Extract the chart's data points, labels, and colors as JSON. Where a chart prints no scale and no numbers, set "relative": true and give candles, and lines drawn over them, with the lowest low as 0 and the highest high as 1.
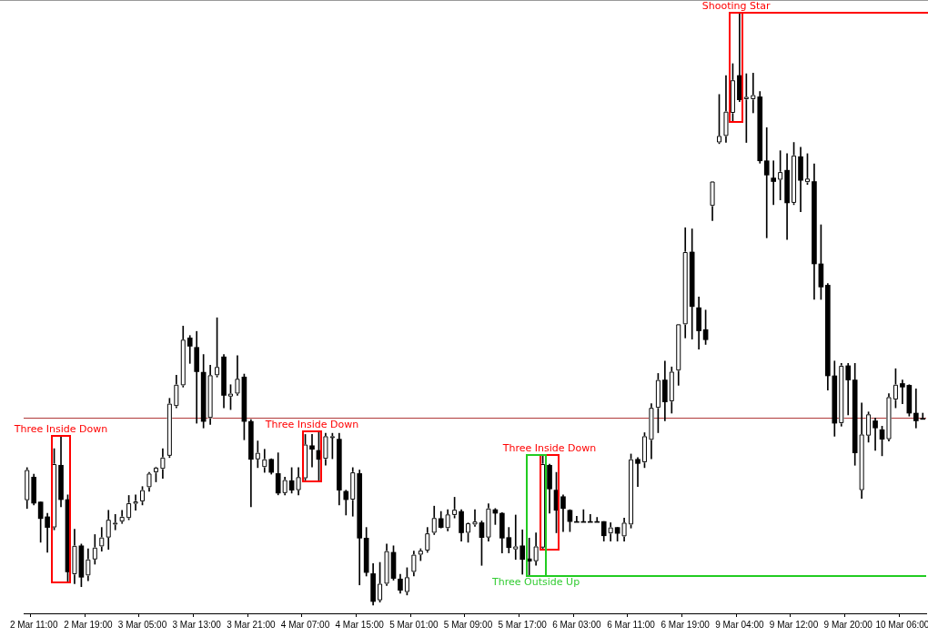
{
  "chart_data": {
    "type": "candlestick",
    "relative": true,
    "color": "#000000",
    "categories": [
      null,
      "2 Mar 11:00",
      null,
      null,
      null,
      null,
      null,
      null,
      null,
      "2 Mar 19:00",
      null,
      null,
      null,
      null,
      null,
      null,
      null,
      "3 Mar 05:00",
      null,
      null,
      null,
      null,
      null,
      null,
      null,
      "3 Mar 13:00",
      null,
      null,
      null,
      null,
      null,
      null,
      null,
      "3 Mar 21:00",
      null,
      null,
      null,
      null,
      null,
      null,
      null,
      "4 Mar 07:00",
      null,
      null,
      null,
      null,
      null,
      null,
      null,
      "4 Mar 15:00",
      null,
      null,
      null,
      null,
      null,
      null,
      null,
      "5 Mar 01:00",
      null,
      null,
      null,
      null,
      null,
      null,
      null,
      "5 Mar 09:00",
      null,
      null,
      null,
      null,
      null,
      null,
      null,
      "5 Mar 17:00",
      null,
      null,
      null,
      null,
      null,
      null,
      null,
      "6 Mar 03:00",
      null,
      null,
      null,
      null,
      null,
      null,
      null,
      "6 Mar 11:00",
      null,
      null,
      null,
      null,
      null,
      null,
      null,
      "6 Mar 19:00",
      null,
      null,
      null,
      null,
      null,
      null,
      null,
      "9 Mar 04:00",
      null,
      null,
      null,
      null,
      null,
      null,
      null,
      "9 Mar 12:00",
      null,
      null,
      null,
      null,
      null,
      null,
      null,
      "9 Mar 20:00",
      null,
      null,
      null,
      null,
      null,
      null,
      null,
      "10 Mar 06:00",
      null,
      null,
      null
    ],
    "ohlc": [
      [
        0.177,
        0.232,
        0.163,
        0.228
      ],
      [
        0.216,
        0.221,
        0.169,
        0.172
      ],
      [
        0.174,
        0.174,
        0.106,
        0.146
      ],
      [
        0.149,
        0.155,
        0.089,
        0.131
      ],
      [
        0.131,
        0.264,
        0.127,
        0.238
      ],
      [
        0.236,
        0.286,
        0.166,
        0.178
      ],
      [
        0.178,
        0.186,
        0.038,
        0.056
      ],
      [
        0.052,
        0.128,
        0.036,
        0.1
      ],
      [
        0.1,
        0.103,
        0.031,
        0.047
      ],
      [
        0.05,
        0.095,
        0.041,
        0.077
      ],
      [
        0.077,
        0.119,
        0.069,
        0.097
      ],
      [
        0.099,
        0.131,
        0.091,
        0.114
      ],
      [
        0.114,
        0.16,
        0.094,
        0.144
      ],
      [
        0.136,
        0.153,
        0.127,
        0.139
      ],
      [
        0.141,
        0.16,
        0.138,
        0.149
      ],
      [
        0.147,
        0.185,
        0.144,
        0.172
      ],
      [
        0.171,
        0.186,
        0.16,
        0.175
      ],
      [
        0.175,
        0.2,
        0.169,
        0.194
      ],
      [
        0.199,
        0.224,
        0.192,
        0.222
      ],
      [
        0.224,
        0.233,
        0.208,
        0.232
      ],
      [
        0.23,
        0.264,
        0.214,
        0.249
      ],
      [
        0.252,
        0.349,
        0.249,
        0.34
      ],
      [
        0.336,
        0.388,
        0.333,
        0.372
      ],
      [
        0.371,
        0.471,
        0.368,
        0.448
      ],
      [
        0.451,
        0.455,
        0.408,
        0.437
      ],
      [
        0.435,
        0.462,
        0.307,
        0.394
      ],
      [
        0.393,
        0.423,
        0.299,
        0.31
      ],
      [
        0.316,
        0.405,
        0.305,
        0.388
      ],
      [
        0.388,
        0.485,
        0.385,
        0.402
      ],
      [
        0.419,
        0.423,
        0.333,
        0.354
      ],
      [
        0.352,
        0.372,
        0.33,
        0.357
      ],
      [
        0.357,
        0.421,
        0.354,
        0.382
      ],
      [
        0.385,
        0.39,
        0.279,
        0.31
      ],
      [
        0.31,
        0.313,
        0.166,
        0.246
      ],
      [
        0.246,
        0.277,
        0.232,
        0.257
      ],
      [
        0.233,
        0.263,
        0.224,
        0.246
      ],
      [
        0.246,
        0.247,
        0.221,
        0.224
      ],
      [
        0.222,
        0.257,
        0.186,
        0.189
      ],
      [
        0.189,
        0.216,
        0.186,
        0.211
      ],
      [
        0.21,
        0.232,
        0.189,
        0.194
      ],
      [
        0.194,
        0.232,
        0.186,
        0.216
      ],
      [
        0.214,
        0.288,
        0.211,
        0.271
      ],
      [
        0.269,
        0.288,
        0.233,
        0.263
      ],
      [
        0.261,
        0.294,
        0.208,
        0.246
      ],
      [
        0.247,
        0.29,
        0.236,
        0.285
      ],
      [
        0.283,
        0.29,
        0.247,
        0.285
      ],
      [
        0.28,
        0.29,
        0.169,
        0.194
      ],
      [
        0.192,
        0.194,
        0.152,
        0.178
      ],
      [
        0.178,
        0.232,
        0.15,
        0.224
      ],
      [
        0.222,
        0.228,
        0.034,
        0.113
      ],
      [
        0.113,
        0.131,
        0.049,
        0.055
      ],
      [
        0.053,
        0.07,
        0,
        0.006
      ],
      [
        0.008,
        0.072,
        0.005,
        0.036
      ],
      [
        0.036,
        0.103,
        0.033,
        0.091
      ],
      [
        0.089,
        0.1,
        0.042,
        0.045
      ],
      [
        0.044,
        0.052,
        0.02,
        0.025
      ],
      [
        0.022,
        0.063,
        0.017,
        0.047
      ],
      [
        0.056,
        0.091,
        0.049,
        0.085
      ],
      [
        0.085,
        0.095,
        0.075,
        0.092
      ],
      [
        0.092,
        0.131,
        0.089,
        0.121
      ],
      [
        0.122,
        0.167,
        0.119,
        0.147
      ],
      [
        0.146,
        0.158,
        0.13,
        0.131
      ],
      [
        0.13,
        0.161,
        0.125,
        0.153
      ],
      [
        0.152,
        0.182,
        0.147,
        0.161
      ],
      [
        0.158,
        0.161,
        0.108,
        0.122
      ],
      [
        0.122,
        0.139,
        0.106,
        0.138
      ],
      [
        0.136,
        0.161,
        0.133,
        0.141
      ],
      [
        0.139,
        0.142,
        0.067,
        0.114
      ],
      [
        0.114,
        0.171,
        0.108,
        0.163
      ],
      [
        0.161,
        0.163,
        0.136,
        0.155
      ],
      [
        0.155,
        0.156,
        0.088,
        0.113
      ],
      [
        0.114,
        0.131,
        0.088,
        0.097
      ],
      [
        0.094,
        0.152,
        0.077,
        0.099
      ],
      [
        0.1,
        0.127,
        0.052,
        0.077
      ],
      [
        0.078,
        0.113,
        0.049,
        0.074
      ],
      [
        0.074,
        0.122,
        0.067,
        0.099
      ],
      [
        0.097,
        0.254,
        0.094,
        0.238
      ],
      [
        0.236,
        0.238,
        0.155,
        0.196
      ],
      [
        0.194,
        0.224,
        0.122,
        0.16
      ],
      [
        0.183,
        0.186,
        0.124,
        0.163
      ],
      [
        0.16,
        0.161,
        0.124,
        0.141
      ],
      [
        0.141,
        0.15,
        0.141,
        0.141
      ],
      [
        0.141,
        0.161,
        0.141,
        0.141
      ],
      [
        0.141,
        0.153,
        0.141,
        0.141
      ],
      [
        0.141,
        0.148,
        0.141,
        0.141
      ],
      [
        0.141,
        0.141,
        0.108,
        0.117
      ],
      [
        0.121,
        0.139,
        0.108,
        0.131
      ],
      [
        0.131,
        0.131,
        0.108,
        0.121
      ],
      [
        0.116,
        0.147,
        0.108,
        0.139
      ],
      [
        0.136,
        0.255,
        0.13,
        0.246
      ],
      [
        0.246,
        0.249,
        0.2,
        0.239
      ],
      [
        0.241,
        0.291,
        0.232,
        0.285
      ],
      [
        0.279,
        0.34,
        0.247,
        0.333
      ],
      [
        0.333,
        0.391,
        0.291,
        0.38
      ],
      [
        0.38,
        0.412,
        0.311,
        0.343
      ],
      [
        0.344,
        0.402,
        0.324,
        0.394
      ],
      [
        0.396,
        0.474,
        0.371,
        0.474
      ],
      [
        0.474,
        0.637,
        0.451,
        0.596
      ],
      [
        0.596,
        0.635,
        0.449,
        0.504
      ],
      [
        0.502,
        0.52,
        0.432,
        0.463
      ],
      [
        0.465,
        0.498,
        0.44,
        0.448
      ],
      [
        0.674,
        0.715,
        0.649,
        0.715
      ],
      [
        0.781,
        0.862,
        0.779,
        0.792
      ],
      [
        0.792,
        0.894,
        0.781,
        0.833
      ],
      [
        0.831,
        0.914,
        0.815,
        0.886
      ],
      [
        0.894,
        1,
        0.85,
        0.853
      ],
      [
        0.854,
        0.897,
        0.781,
        0.858
      ],
      [
        0.854,
        0.898,
        0.831,
        0.861
      ],
      [
        0.858,
        0.867,
        0.746,
        0.75
      ],
      [
        0.75,
        0.806,
        0.62,
        0.726
      ],
      [
        0.721,
        0.75,
        0.676,
        0.715
      ],
      [
        0.718,
        0.767,
        0.684,
        0.731
      ],
      [
        0.734,
        0.762,
        0.617,
        0.679
      ],
      [
        0.679,
        0.781,
        0.676,
        0.759
      ],
      [
        0.757,
        0.773,
        0.664,
        0.717
      ],
      [
        0.714,
        0.762,
        0.71,
        0.72
      ],
      [
        0.715,
        0.745,
        0.516,
        0.576
      ],
      [
        0.576,
        0.642,
        0.516,
        0.537
      ],
      [
        0.54,
        0.543,
        0.363,
        0.387
      ],
      [
        0.387,
        0.412,
        0.285,
        0.307
      ],
      [
        0.307,
        0.408,
        0.302,
        0.404
      ],
      [
        0.404,
        0.408,
        0.321,
        0.38
      ],
      [
        0.38,
        0.408,
        0.236,
        0.257
      ],
      [
        0.194,
        0.341,
        0.18,
        0.288
      ],
      [
        0.286,
        0.326,
        0.275,
        0.322
      ],
      [
        0.311,
        0.316,
        0.261,
        0.299
      ],
      [
        0.296,
        0.302,
        0.252,
        0.28
      ],
      [
        0.28,
        0.357,
        0.277,
        0.351
      ],
      [
        0.347,
        0.399,
        0.333,
        0.372
      ],
      [
        0.374,
        0.38,
        0.34,
        0.368
      ],
      [
        0.371,
        0.372,
        0.319,
        0.324
      ],
      [
        0.324,
        0.365,
        0.299,
        0.311
      ],
      [
        0.315,
        0.324,
        0.315,
        0.315
      ]
    ],
    "colors": [
      "#ffffff",
      "#000000",
      "#000000",
      "#000000",
      "#ffffff",
      "#000000",
      "#000000",
      "#ffffff",
      "#000000",
      "#ffffff",
      "#ffffff",
      "#ffffff",
      "#ffffff",
      "#ffffff",
      "#ffffff",
      "#ffffff",
      "#ffffff",
      "#ffffff",
      "#ffffff",
      "#ffffff",
      "#ffffff",
      "#ffffff",
      "#ffffff",
      "#ffffff",
      "#000000",
      "#000000",
      "#000000",
      "#ffffff",
      "#ffffff",
      "#000000",
      "#ffffff",
      "#ffffff",
      "#000000",
      "#000000",
      "#ffffff",
      "#ffffff",
      "#000000",
      "#000000",
      "#ffffff",
      "#000000",
      "#ffffff",
      "#ffffff",
      "#000000",
      "#000000",
      "#ffffff",
      "#ffffff",
      "#000000",
      "#000000",
      "#ffffff",
      "#000000",
      "#000000",
      "#000000",
      "#ffffff",
      "#ffffff",
      "#000000",
      "#000000",
      "#ffffff",
      "#ffffff",
      "#ffffff",
      "#ffffff",
      "#ffffff",
      "#000000",
      "#ffffff",
      "#ffffff",
      "#000000",
      "#ffffff",
      "#ffffff",
      "#000000",
      "#ffffff",
      "#000000",
      "#000000",
      "#000000",
      "#ffffff",
      "#000000",
      "#000000",
      "#ffffff",
      "#ffffff",
      "#000000",
      "#000000",
      "#000000",
      "#000000",
      "#000000",
      "#000000",
      "#000000",
      "#000000",
      "#000000",
      "#ffffff",
      "#000000",
      "#ffffff",
      "#ffffff",
      "#000000",
      "#ffffff",
      "#ffffff",
      "#ffffff",
      "#000000",
      "#ffffff",
      "#ffffff",
      "#ffffff",
      "#000000",
      "#000000",
      "#000000",
      "#ffffff",
      "#ffffff",
      "#ffffff",
      "#ffffff",
      "#000000",
      "#ffffff",
      "#ffffff",
      "#000000",
      "#000000",
      "#000000",
      "#ffffff",
      "#000000",
      "#ffffff",
      "#000000",
      "#ffffff",
      "#000000",
      "#000000",
      "#000000",
      "#000000",
      "#ffffff",
      "#000000",
      "#000000",
      "#ffffff",
      "#ffffff",
      "#000000",
      "#000000",
      "#ffffff",
      "#ffffff",
      "#000000",
      "#000000",
      "#000000",
      "#000000"
    ],
    "ref_lines": [
      {
        "axis": "y",
        "value": 0.316,
        "color": "#b03a3a"
      }
    ],
    "annotations": [
      "Three Inside Down",
      "Three Inside Down",
      "Three Inside Down",
      "Three Outside Up",
      "Shooting Star"
    ],
    "legend": false
  }
}
